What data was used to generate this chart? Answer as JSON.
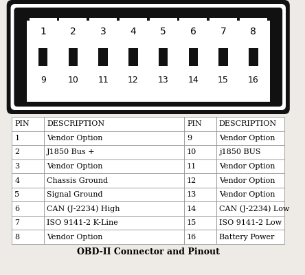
{
  "title": "OBD-II Connector and Pinout",
  "background_color": "#eeebe6",
  "connector_color": "#111111",
  "pin_top_row": [
    1,
    2,
    3,
    4,
    5,
    6,
    7,
    8
  ],
  "pin_bot_row": [
    9,
    10,
    11,
    12,
    13,
    14,
    15,
    16
  ],
  "table_headers": [
    "PIN",
    "DESCRIPTION",
    "PIN",
    "DESCRIPTION"
  ],
  "table_data": [
    [
      "1",
      "Vendor Option",
      "9",
      "Vendor Option"
    ],
    [
      "2",
      "J1850 Bus +",
      "10",
      "j1850 BUS"
    ],
    [
      "3",
      "Vendor Option",
      "11",
      "Vendor Option"
    ],
    [
      "4",
      "Chassis Ground",
      "12",
      "Vendor Option"
    ],
    [
      "5",
      "Signal Ground",
      "13",
      "Vendor Option"
    ],
    [
      "6",
      "CAN (J-2234) High",
      "14",
      "CAN (J-2234) Low"
    ],
    [
      "7",
      "ISO 9141-2 K-Line",
      "15",
      "ISO 9141-2 Low"
    ],
    [
      "8",
      "Vendor Option",
      "16",
      "Battery Power"
    ]
  ],
  "font_size_table": 8,
  "font_size_pin": 10,
  "font_size_title": 9
}
